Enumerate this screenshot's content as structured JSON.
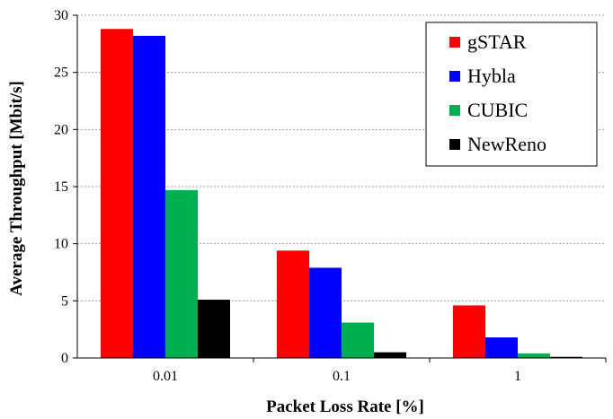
{
  "chart_data": {
    "type": "bar",
    "xlabel": "Packet Loss Rate [%]",
    "ylabel": "Average Throughput [Mbit/s]",
    "categories": [
      "0.01",
      "0.1",
      "1"
    ],
    "ylim": [
      0,
      30
    ],
    "yticks": [
      "0",
      "5",
      "10",
      "15",
      "20",
      "25",
      "30"
    ],
    "grid": "horizontal dashed",
    "legend_position": "top-right",
    "series": [
      {
        "name": "gSTAR",
        "color": "#ff0000",
        "values": [
          28.8,
          9.4,
          4.6
        ]
      },
      {
        "name": "Hybla",
        "color": "#0000ff",
        "values": [
          28.2,
          7.9,
          1.8
        ]
      },
      {
        "name": "CUBIC",
        "color": "#00b050",
        "values": [
          14.7,
          3.1,
          0.4
        ]
      },
      {
        "name": "NewReno",
        "color": "#000000",
        "values": [
          5.1,
          0.5,
          0.1
        ]
      }
    ]
  }
}
